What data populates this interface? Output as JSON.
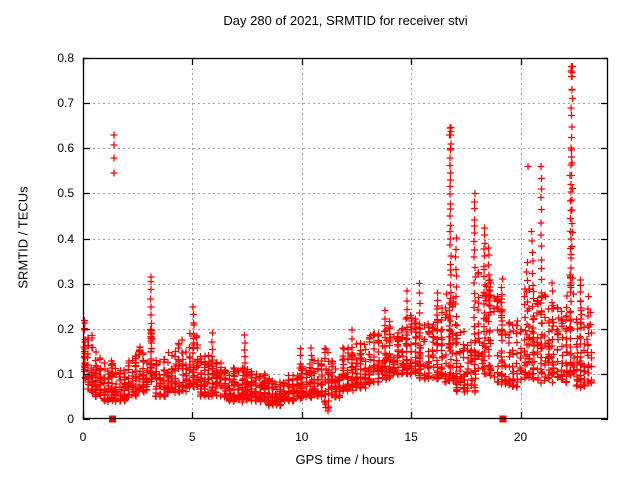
{
  "chart_data": {
    "type": "scatter",
    "title": "Day 280 of 2021, SRMTID for receiver stvi",
    "xlabel": "GPS time / hours",
    "ylabel": "SRMTID / TECUs",
    "xlim": [
      0,
      24
    ],
    "ylim": [
      0,
      0.8
    ],
    "grid": true,
    "legend": "none",
    "xticks": [
      {
        "v": 0,
        "label": "0"
      },
      {
        "v": 5,
        "label": "5"
      },
      {
        "v": 10,
        "label": "10"
      },
      {
        "v": 15,
        "label": "15"
      },
      {
        "v": 20,
        "label": "20"
      }
    ],
    "yticks": [
      {
        "v": 0.0,
        "label": "0"
      },
      {
        "v": 0.1,
        "label": "0.1"
      },
      {
        "v": 0.2,
        "label": "0.2"
      },
      {
        "v": 0.3,
        "label": "0.3"
      },
      {
        "v": 0.4,
        "label": "0.4"
      },
      {
        "v": 0.5,
        "label": "0.5"
      },
      {
        "v": 0.6,
        "label": "0.6"
      },
      {
        "v": 0.7,
        "label": "0.7"
      },
      {
        "v": 0.8,
        "label": "0.8"
      }
    ],
    "colors": {
      "marker": "#ff0000",
      "grid": "#a0a0a0",
      "frame": "#000000",
      "text": "#000000",
      "background": "#ffffff"
    },
    "series": [
      {
        "name": "srmtid-points",
        "marker": "plus",
        "color": "#ff0000",
        "bins_format": [
          "x_start_hour",
          "x_end_hour",
          "y_min",
          "y_max",
          "point_count"
        ],
        "bins": [
          [
            0.0,
            0.15,
            0.09,
            0.22,
            22
          ],
          [
            0.15,
            0.5,
            0.06,
            0.19,
            38
          ],
          [
            0.5,
            0.9,
            0.05,
            0.16,
            42
          ],
          [
            0.9,
            1.4,
            0.04,
            0.13,
            50
          ],
          [
            1.4,
            2.0,
            0.04,
            0.11,
            58
          ],
          [
            2.0,
            2.5,
            0.05,
            0.14,
            46
          ],
          [
            2.5,
            3.0,
            0.06,
            0.16,
            46
          ],
          [
            3.0,
            3.25,
            0.08,
            0.22,
            24
          ],
          [
            3.25,
            3.8,
            0.05,
            0.14,
            48
          ],
          [
            3.8,
            4.3,
            0.06,
            0.15,
            46
          ],
          [
            4.3,
            4.8,
            0.06,
            0.18,
            48
          ],
          [
            4.8,
            5.3,
            0.07,
            0.19,
            46
          ],
          [
            5.3,
            6.0,
            0.05,
            0.14,
            60
          ],
          [
            6.0,
            6.6,
            0.05,
            0.13,
            55
          ],
          [
            6.6,
            7.2,
            0.04,
            0.12,
            55
          ],
          [
            7.2,
            7.8,
            0.04,
            0.12,
            55
          ],
          [
            7.8,
            8.4,
            0.04,
            0.1,
            55
          ],
          [
            8.4,
            9.1,
            0.03,
            0.09,
            60
          ],
          [
            9.1,
            9.7,
            0.04,
            0.1,
            55
          ],
          [
            9.7,
            10.3,
            0.05,
            0.12,
            55
          ],
          [
            10.3,
            11.0,
            0.05,
            0.13,
            60
          ],
          [
            11.0,
            11.3,
            0.02,
            0.16,
            28
          ],
          [
            11.3,
            11.8,
            0.05,
            0.13,
            46
          ],
          [
            11.8,
            12.4,
            0.06,
            0.16,
            55
          ],
          [
            12.4,
            13.0,
            0.07,
            0.17,
            55
          ],
          [
            13.0,
            13.6,
            0.08,
            0.19,
            55
          ],
          [
            13.6,
            14.1,
            0.09,
            0.22,
            48
          ],
          [
            14.1,
            14.7,
            0.1,
            0.21,
            52
          ],
          [
            14.7,
            15.3,
            0.1,
            0.23,
            52
          ],
          [
            15.3,
            15.9,
            0.09,
            0.21,
            52
          ],
          [
            15.9,
            16.5,
            0.09,
            0.25,
            52
          ],
          [
            16.5,
            17.0,
            0.08,
            0.28,
            40
          ],
          [
            17.0,
            17.5,
            0.06,
            0.22,
            40
          ],
          [
            17.5,
            18.0,
            0.06,
            0.18,
            34
          ],
          [
            18.0,
            18.7,
            0.1,
            0.33,
            52
          ],
          [
            18.7,
            19.4,
            0.08,
            0.28,
            48
          ],
          [
            19.4,
            20.1,
            0.07,
            0.23,
            52
          ],
          [
            20.1,
            20.7,
            0.09,
            0.3,
            46
          ],
          [
            20.7,
            21.2,
            0.08,
            0.28,
            38
          ],
          [
            21.2,
            21.8,
            0.09,
            0.26,
            46
          ],
          [
            21.8,
            22.2,
            0.08,
            0.28,
            36
          ],
          [
            22.2,
            22.5,
            0.1,
            0.36,
            28
          ],
          [
            22.5,
            23.0,
            0.07,
            0.28,
            40
          ],
          [
            23.0,
            23.3,
            0.08,
            0.24,
            16
          ]
        ],
        "spikes_format": [
          "x_hour",
          "y_base",
          "y_top",
          "point_count"
        ],
        "spikes": [
          [
            3.1,
            0.1,
            0.315,
            14
          ],
          [
            5.05,
            0.08,
            0.25,
            12
          ],
          [
            5.9,
            0.06,
            0.19,
            8
          ],
          [
            7.4,
            0.05,
            0.185,
            10
          ],
          [
            9.95,
            0.05,
            0.155,
            8
          ],
          [
            10.45,
            0.05,
            0.16,
            8
          ],
          [
            12.3,
            0.07,
            0.195,
            8
          ],
          [
            13.8,
            0.1,
            0.24,
            10
          ],
          [
            14.8,
            0.11,
            0.28,
            10
          ],
          [
            15.4,
            0.1,
            0.3,
            10
          ],
          [
            16.2,
            0.1,
            0.28,
            12
          ],
          [
            16.8,
            0.1,
            0.645,
            34
          ],
          [
            17.05,
            0.08,
            0.4,
            16
          ],
          [
            17.9,
            0.08,
            0.5,
            24
          ],
          [
            18.35,
            0.1,
            0.42,
            22
          ],
          [
            18.55,
            0.1,
            0.38,
            16
          ],
          [
            19.15,
            0.08,
            0.31,
            14
          ],
          [
            20.3,
            0.1,
            0.35,
            12
          ],
          [
            20.55,
            0.1,
            0.42,
            14
          ],
          [
            20.95,
            0.08,
            0.56,
            20
          ],
          [
            21.45,
            0.08,
            0.3,
            12
          ],
          [
            22.3,
            0.1,
            0.6,
            26
          ],
          [
            22.35,
            0.38,
            0.785,
            16
          ],
          [
            22.75,
            0.07,
            0.31,
            16
          ],
          [
            23.1,
            0.08,
            0.27,
            10
          ]
        ],
        "outlier_points": [
          [
            1.42,
            0.545
          ],
          [
            1.42,
            0.578
          ],
          [
            1.42,
            0.607
          ],
          [
            1.42,
            0.629
          ],
          [
            16.78,
            0.645
          ],
          [
            16.82,
            0.637
          ],
          [
            16.75,
            0.629
          ],
          [
            16.8,
            0.6
          ],
          [
            22.33,
            0.781
          ],
          [
            22.3,
            0.771
          ],
          [
            22.36,
            0.768
          ],
          [
            22.33,
            0.759
          ],
          [
            22.35,
            0.729
          ],
          [
            22.31,
            0.689
          ],
          [
            20.34,
            0.56
          ]
        ]
      },
      {
        "name": "axis-squares",
        "marker": "filled-square",
        "color": "#ff0000",
        "points": [
          [
            1.35,
            0
          ],
          [
            19.2,
            0
          ]
        ]
      }
    ]
  }
}
